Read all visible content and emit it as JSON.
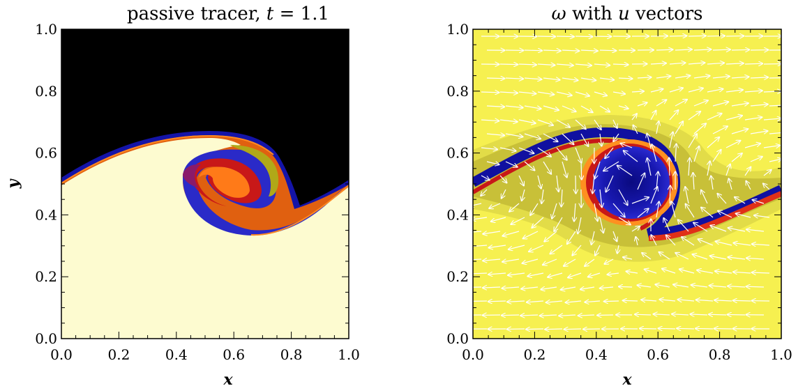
{
  "chart_data": [
    {
      "type": "heatmap",
      "title_parts": [
        "passive tracer, ",
        "t",
        " = 1.1"
      ],
      "xlabel": "x",
      "ylabel": "y",
      "xlim": [
        0.0,
        1.0
      ],
      "ylim": [
        0.0,
        1.0
      ],
      "xticks": [
        "0.0",
        "0.2",
        "0.4",
        "0.6",
        "0.8",
        "1.0"
      ],
      "yticks": [
        "0.0",
        "0.2",
        "0.4",
        "0.6",
        "0.8",
        "1.0"
      ],
      "time": 1.1,
      "colors": {
        "upper_fluid": "#000000",
        "lower_fluid": "#fdfbd0",
        "interface": [
          "#1010a0",
          "#4040d8",
          "#7a1a6a",
          "#cc1a1a",
          "#ff5010",
          "#ffa020",
          "#a8a010"
        ]
      }
    },
    {
      "type": "heatmap",
      "title_parts": [
        "ω",
        " with ",
        "u",
        " vectors"
      ],
      "xlabel": "x",
      "ylabel": "",
      "xlim": [
        0.0,
        1.0
      ],
      "ylim": [
        0.0,
        1.0
      ],
      "xticks": [
        "0.0",
        "0.2",
        "0.4",
        "0.6",
        "0.8",
        "1.0"
      ],
      "yticks": [
        "0.0",
        "0.2",
        "0.4",
        "0.6",
        "0.8",
        "1.0"
      ],
      "vortex_center": [
        0.5,
        0.5
      ],
      "colors": {
        "background": "#f6f050",
        "shear_layer": "#d8d040",
        "vortex_core": "#1010a0",
        "band": [
          "#c81818",
          "#ff6010",
          "#ffa020"
        ],
        "vectors": "#ffffff"
      }
    }
  ]
}
